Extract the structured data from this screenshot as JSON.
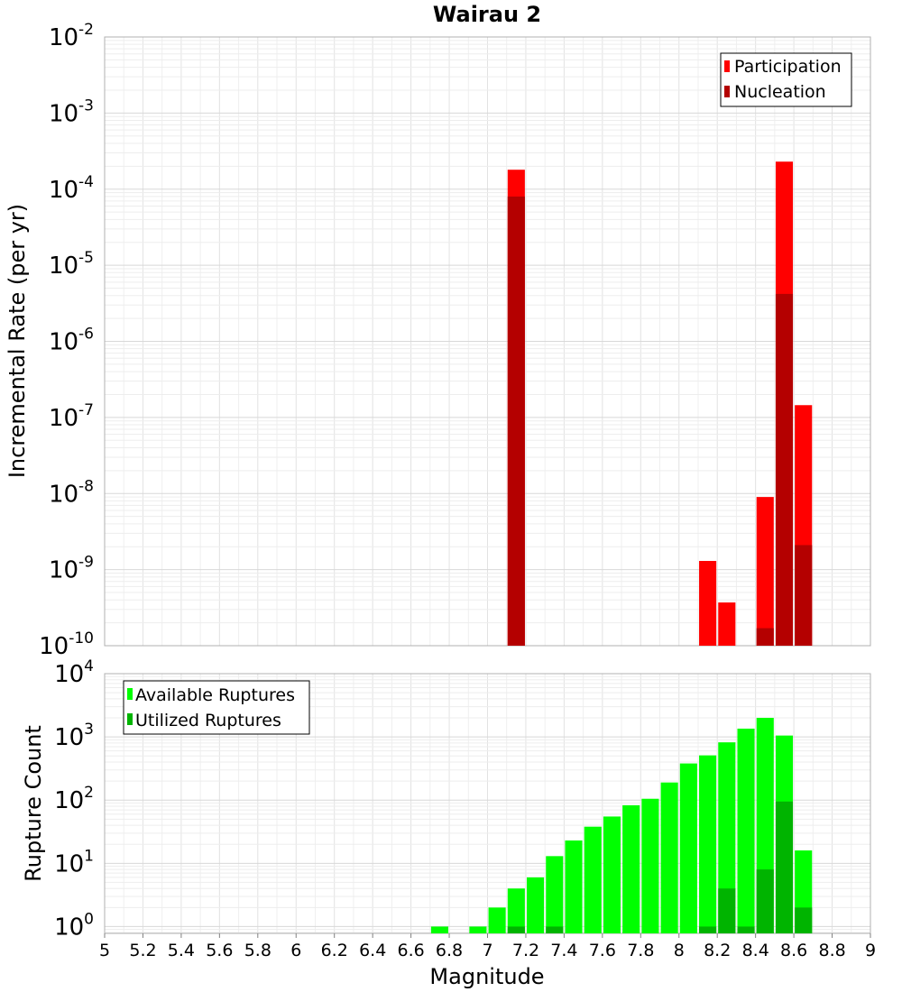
{
  "chart_data": [
    {
      "type": "bar",
      "title": "Wairau 2",
      "xlabel": "",
      "ylabel": "Incremental Rate (per yr)",
      "y_scale": "log",
      "xlim": [
        5,
        9
      ],
      "ylim": [
        1e-10,
        0.01
      ],
      "grid": true,
      "legend_position": "top-right",
      "yticks": [
        {
          "base": "10",
          "exp": "-2"
        },
        {
          "base": "10",
          "exp": "-3"
        },
        {
          "base": "10",
          "exp": "-4"
        },
        {
          "base": "10",
          "exp": "-5"
        },
        {
          "base": "10",
          "exp": "-6"
        },
        {
          "base": "10",
          "exp": "-7"
        },
        {
          "base": "10",
          "exp": "-8"
        },
        {
          "base": "10",
          "exp": "-9"
        },
        {
          "base": "10",
          "exp": "-10"
        }
      ],
      "x": [
        7.15,
        8.15,
        8.25,
        8.45,
        8.55,
        8.65
      ],
      "series": [
        {
          "name": "Participation",
          "color": "#ff0000",
          "values": [
            0.00018,
            1.3e-09,
            3.7e-10,
            9e-09,
            0.00023,
            1.45e-07
          ]
        },
        {
          "name": "Nucleation",
          "color": "#b40000",
          "values": [
            8e-05,
            null,
            null,
            1.7e-10,
            4.2e-06,
            2.1e-09
          ]
        }
      ]
    },
    {
      "type": "bar",
      "title": "",
      "xlabel": "Magnitude",
      "ylabel": "Rupture Count",
      "y_scale": "log",
      "xlim": [
        5,
        9
      ],
      "ylim": [
        0.78,
        10000
      ],
      "grid": true,
      "legend_position": "top-left",
      "xticks": [
        "5",
        "5.2",
        "5.4",
        "5.6",
        "5.8",
        "6",
        "6.2",
        "6.4",
        "6.6",
        "6.8",
        "7",
        "7.2",
        "7.4",
        "7.6",
        "7.8",
        "8",
        "8.2",
        "8.4",
        "8.6",
        "8.8",
        "9"
      ],
      "yticks": [
        {
          "base": "10",
          "exp": "4"
        },
        {
          "base": "10",
          "exp": "3"
        },
        {
          "base": "10",
          "exp": "2"
        },
        {
          "base": "10",
          "exp": "1"
        },
        {
          "base": "10",
          "exp": "0"
        }
      ],
      "x": [
        6.75,
        6.95,
        7.05,
        7.15,
        7.25,
        7.35,
        7.45,
        7.55,
        7.65,
        7.75,
        7.85,
        7.95,
        8.05,
        8.15,
        8.25,
        8.35,
        8.45,
        8.55,
        8.65
      ],
      "series": [
        {
          "name": "Available Ruptures",
          "color": "#00ff00",
          "values": [
            1,
            1,
            2,
            4,
            6,
            13,
            23,
            38,
            55,
            83,
            105,
            190,
            380,
            510,
            820,
            1350,
            2000,
            1050,
            16
          ]
        },
        {
          "name": "Utilized Ruptures",
          "color": "#00b400",
          "values": [
            null,
            null,
            null,
            1,
            null,
            1,
            null,
            null,
            null,
            null,
            null,
            null,
            null,
            1,
            4,
            1,
            8,
            95,
            2
          ]
        }
      ]
    }
  ]
}
